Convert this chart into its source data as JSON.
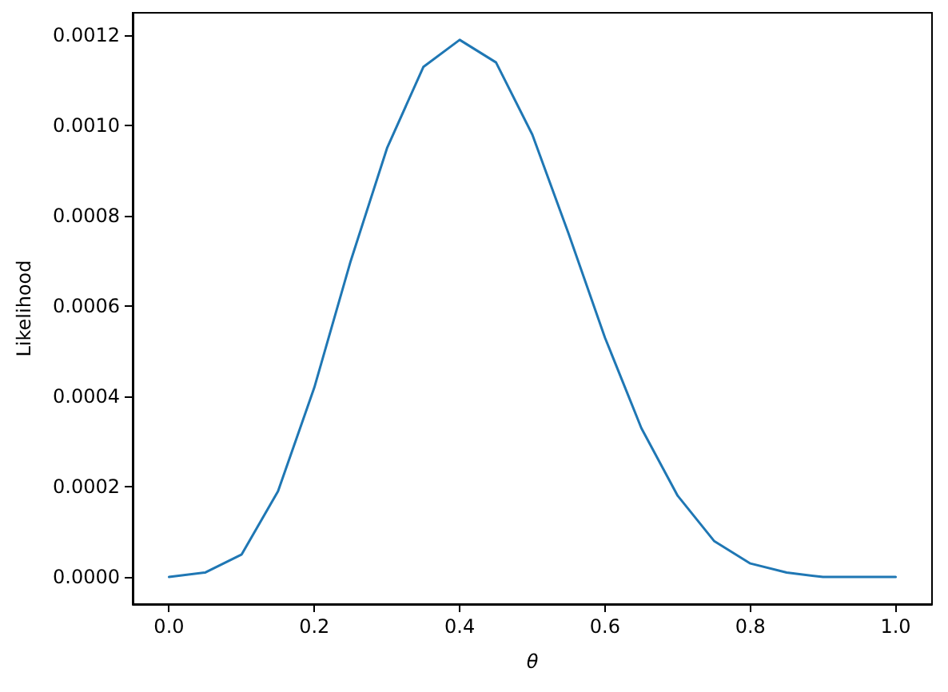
{
  "chart_data": {
    "type": "line",
    "xlabel": "θ",
    "ylabel": "Likelihood",
    "x": [
      0,
      0.05,
      0.1,
      0.15,
      0.2,
      0.25,
      0.3,
      0.35,
      0.4,
      0.45,
      0.5,
      0.55,
      0.6,
      0.65,
      0.7,
      0.75,
      0.8,
      0.85,
      0.9,
      0.95,
      1
    ],
    "series": [
      {
        "color": "#1f77b4",
        "values": [
          0,
          1e-05,
          5e-05,
          0.00019,
          0.00042,
          0.0007,
          0.00095,
          0.00113,
          0.00119,
          0.00114,
          0.00098,
          0.00076,
          0.00053,
          0.00033,
          0.00018,
          8e-05,
          3e-05,
          1e-05,
          0,
          0,
          0
        ]
      }
    ],
    "xlim": [
      -0.05,
      1.05
    ],
    "xticks": [
      {
        "value": 0,
        "label": "0.0"
      },
      {
        "value": 0.2,
        "label": "0.2"
      },
      {
        "value": 0.4,
        "label": "0.4"
      },
      {
        "value": 0.6,
        "label": "0.6"
      },
      {
        "value": 0.8,
        "label": "0.8"
      },
      {
        "value": 1,
        "label": "1.0"
      }
    ],
    "ylim": [
      -6e-05,
      0.00125
    ],
    "yticks": [
      {
        "value": 0,
        "label": "0.0000"
      },
      {
        "value": 0.0002,
        "label": "0.0002"
      },
      {
        "value": 0.0004,
        "label": "0.0004"
      },
      {
        "value": 0.0006,
        "label": "0.0006"
      },
      {
        "value": 0.0008,
        "label": "0.0008"
      },
      {
        "value": 0.001,
        "label": "0.0010"
      },
      {
        "value": 0.0012,
        "label": "0.0012"
      }
    ],
    "marker": "none",
    "line_style": "solid"
  }
}
